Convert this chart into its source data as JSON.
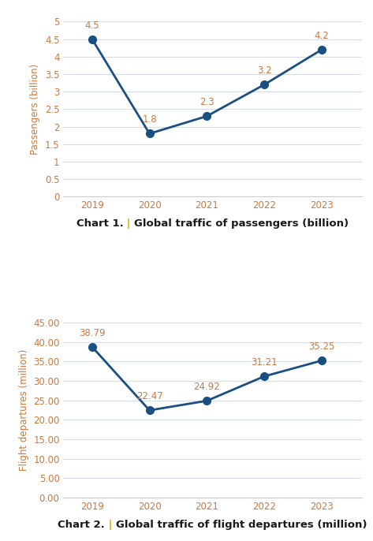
{
  "years": [
    2019,
    2020,
    2021,
    2022,
    2023
  ],
  "passengers": [
    4.5,
    1.8,
    2.3,
    3.2,
    4.2
  ],
  "departures": [
    38.79,
    22.47,
    24.92,
    31.21,
    35.25
  ],
  "line_color": "#1b4f82",
  "marker_color": "#1b4f82",
  "data_label_color": "#c87941",
  "axis_label_color": "#c87941",
  "tick_label_color": "#c87941",
  "chart1_ylabel": "Passengers (billion)",
  "chart2_ylabel": "Flight departures (million)",
  "chart1_title_bold": "Chart 1.",
  "chart1_title_pipe": " | ",
  "chart1_title_rest": "Global traffic of passengers (billion)",
  "chart2_title_bold": "Chart 2.",
  "chart2_title_pipe": " | ",
  "chart2_title_rest": "Global traffic of flight departures (million)",
  "chart1_ylim": [
    0,
    5
  ],
  "chart1_yticks": [
    0,
    0.5,
    1,
    1.5,
    2,
    2.5,
    3,
    3.5,
    4,
    4.5,
    5
  ],
  "chart2_ylim": [
    0,
    45
  ],
  "chart2_yticks": [
    0,
    5,
    10,
    15,
    20,
    25,
    30,
    35,
    40,
    45
  ],
  "background_color": "#ffffff",
  "grid_color": "#d5dde8",
  "title_bold_color": "#1a1a1a",
  "title_pipe_color": "#e8a800",
  "title_rest_color": "#1a1a1a"
}
